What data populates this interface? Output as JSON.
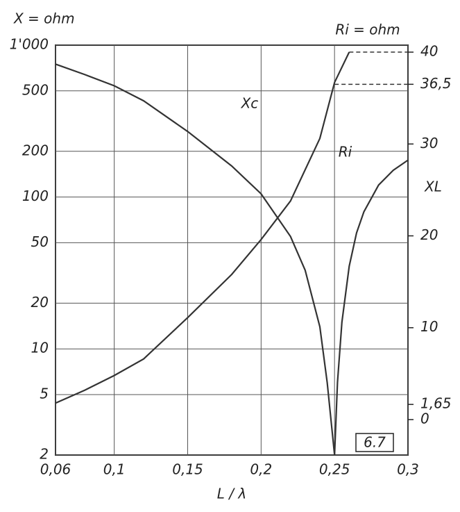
{
  "chart_data": {
    "type": "line",
    "y_label": "X = ohm",
    "y2_label": "Ri = ohm",
    "x_label": "L / λ",
    "badge": "6.7",
    "xlim": [
      0.06,
      0.3
    ],
    "xticks": [
      {
        "value": 0.06,
        "label": "0,06"
      },
      {
        "value": 0.1,
        "label": "0,1"
      },
      {
        "value": 0.15,
        "label": "0,15"
      },
      {
        "value": 0.2,
        "label": "0,2"
      },
      {
        "value": 0.25,
        "label": "0,25"
      },
      {
        "value": 0.3,
        "label": "0,3"
      }
    ],
    "ylim": [
      2,
      1000
    ],
    "ylog": true,
    "yticks": [
      2,
      5,
      10,
      20,
      50,
      100,
      200,
      500,
      {
        "value": 1000,
        "label": "1'000"
      }
    ],
    "y2lim": [
      -3.86,
      40.76
    ],
    "y2ticks": [
      0,
      {
        "value": 1.65,
        "label": "1,65"
      },
      10,
      20,
      30,
      {
        "value": 36.5,
        "label": "36,5"
      },
      40
    ],
    "grid": true,
    "series": [
      {
        "name": "Xc",
        "color": "#333333",
        "x": [
          0.06,
          0.08,
          0.1,
          0.12,
          0.15,
          0.18,
          0.2,
          0.22,
          0.23,
          0.24,
          0.245,
          0.25
        ],
        "values": [
          750,
          640,
          540,
          430,
          270,
          160,
          105,
          55,
          33,
          14,
          6,
          2
        ]
      },
      {
        "name": "XL",
        "color": "#333333",
        "x": [
          0.25,
          0.252,
          0.255,
          0.26,
          0.265,
          0.27,
          0.28,
          0.29,
          0.3
        ],
        "values": [
          2,
          6,
          15,
          35,
          58,
          80,
          120,
          150,
          175
        ]
      },
      {
        "name": "Ri",
        "color": "#333333",
        "axis": "y2",
        "x": [
          0.06,
          0.08,
          0.1,
          0.12,
          0.15,
          0.18,
          0.2,
          0.22,
          0.24,
          0.25,
          0.26
        ],
        "values": [
          1.8,
          3.2,
          4.8,
          6.6,
          11.1,
          15.8,
          19.6,
          23.8,
          30.6,
          36.7,
          40
        ]
      }
    ]
  }
}
